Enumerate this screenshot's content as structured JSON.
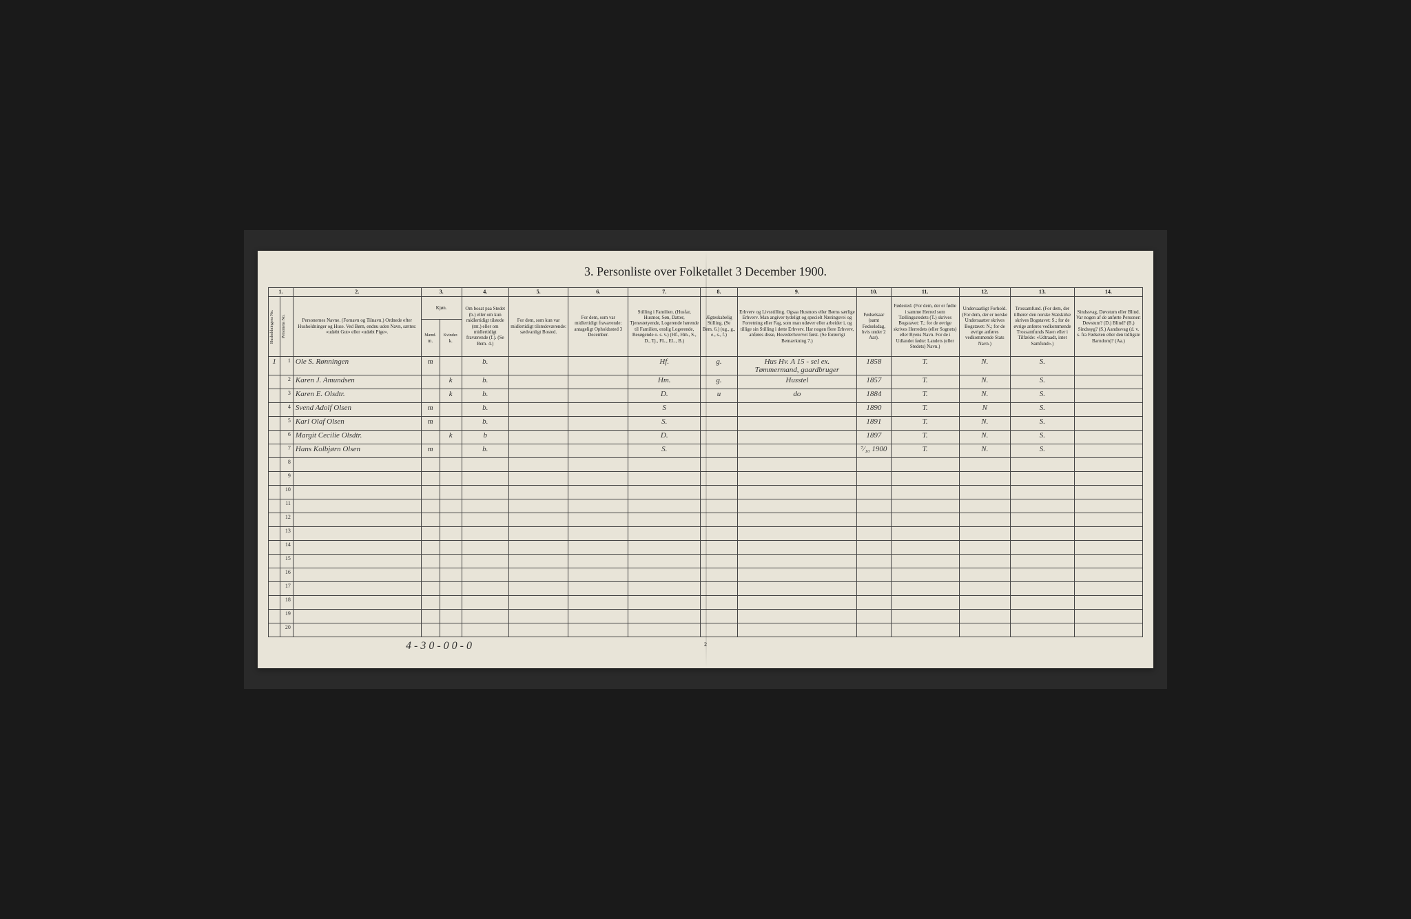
{
  "title": "3. Personliste over Folketallet 3 December 1900.",
  "col_numbers": [
    "1.",
    "2.",
    "3.",
    "4.",
    "5.",
    "6.",
    "7.",
    "8.",
    "9.",
    "10.",
    "11.",
    "12.",
    "13.",
    "14."
  ],
  "headers": {
    "c1a": "Husholdningens No.",
    "c1b": "Personens No.",
    "c2": "Personernes Navne.\n(Fornavn og Tilnavn.)\nOrdnede efter Husholdninger og Huse.\nVed Børn, endnu uden Navn, sættes: «udøbt Gut» eller «udøbt Pige».",
    "c3": "Kjøn.",
    "c3a": "Mænd.",
    "c3b": "Kvinder.",
    "c4": "Om bosat paa Stedet (b.) eller om kun midlertidigt tilstede (mt.) eller om midlertidigt fraværende (f.). (Se Bem. 4.)",
    "c5": "For dem, som kun var midlertidigt tilstedeværende:\nsædvanligt Bosted.",
    "c6": "For dem, som var midlertidigt fraværende:\nantageligt Opholdssted 3 December.",
    "c7": "Stilling i Familien.\n(Husfar, Husmor, Søn, Datter, Tjenestetyende, Logerende hørende til Familien, enslig Logerende, Besøgende o. s. v.)\n(Hf., Hm., S., D., Tj., FL., EL., B.)",
    "c8": "Ægteskabelig Stilling.\n(Se Bem. 6.)\n(ug., g., e., s., f.)",
    "c9": "Erhverv og Livsstilling.\nOgsaa Husmors eller Børns særlige Erhverv. Man angiver tydeligt og specielt Næringsvei og Forretning eller Fag, som man udøver eller arbeider i, og tillige sin Stilling i dette Erhverv. Har nogen flere Erhverv, anføres disse, Hovederhvervet først.\n(Se forøvrigt Bemærkning 7.)",
    "c10": "Fødselsaar\n(samt Fødselsdag, hvis under 2 Aar).",
    "c11": "Fødested.\n(For dem, der er fødte i samme Herred som Tællingsstedets (T.) skrives Bogstavet: T.; for de øvrige skrives Herredets (eller Sognets) eller Byens Navn. For de i Udlandet fødte: Landets (eller Stedets) Navn.)",
    "c12": "Undersaatligt Forhold.\n(For dem, der er norske Undersaatter skrives Bogstavet: N.; for de øvrige anføres vedkommende Stats Navn.)",
    "c13": "Trossamfund.\n(For dem, der tilhører den norske Statskirke skrives Bogstavet: S.; for de øvrige anføres vedkommende Trossamfunds Navn eller i Tilfælde: «Udtraadt, intet Samfund».)",
    "c14": "Sindssvag, Døvstum eller Blind.\nVar nogen af de anførte Personer:\nDøvstum? (D.)\nBlind? (B.)\nSindssyg? (S.)\nAandssvag (d. v. s. fra Fødselen eller den tidligste Barndom)? (Aa.)"
  },
  "rows": [
    {
      "hh": "1",
      "n": "1",
      "name": "Ole S. Rønningen",
      "m": "m",
      "k": "",
      "b": "b.",
      "c5": "",
      "c6": "",
      "c7": "Hf.",
      "c8": "g.",
      "c9": "Hus Hv. A 15 - sel ex.\nTømmermand, gaardbruger",
      "c10": "1858",
      "c11": "T.",
      "c12": "N.",
      "c13": "S.",
      "c14": ""
    },
    {
      "hh": "",
      "n": "2",
      "name": "Karen J. Amundsen",
      "m": "",
      "k": "k",
      "b": "b.",
      "c5": "",
      "c6": "",
      "c7": "Hm.",
      "c8": "g.",
      "c9": "Husstel",
      "c10": "1857",
      "c11": "T.",
      "c12": "N.",
      "c13": "S.",
      "c14": ""
    },
    {
      "hh": "",
      "n": "3",
      "name": "Karen E. Olsdtr.",
      "m": "",
      "k": "k",
      "b": "b.",
      "c5": "",
      "c6": "",
      "c7": "D.",
      "c8": "u",
      "c9": "do",
      "c10": "1884",
      "c11": "T.",
      "c12": "N.",
      "c13": "S.",
      "c14": ""
    },
    {
      "hh": "",
      "n": "4",
      "name": "Svend Adolf Olsen",
      "m": "m",
      "k": "",
      "b": "b.",
      "c5": "",
      "c6": "",
      "c7": "S",
      "c8": "",
      "c9": "",
      "c10": "1890",
      "c11": "T.",
      "c12": "N",
      "c13": "S.",
      "c14": ""
    },
    {
      "hh": "",
      "n": "5",
      "name": "Karl Olaf Olsen",
      "m": "m",
      "k": "",
      "b": "b.",
      "c5": "",
      "c6": "",
      "c7": "S.",
      "c8": "",
      "c9": "",
      "c10": "1891",
      "c11": "T.",
      "c12": "N.",
      "c13": "S.",
      "c14": ""
    },
    {
      "hh": "",
      "n": "6",
      "name": "Margit Cecilie Olsdtr.",
      "m": "",
      "k": "k",
      "b": "b",
      "c5": "",
      "c6": "",
      "c7": "D.",
      "c8": "",
      "c9": "",
      "c10": "1897",
      "c11": "T.",
      "c12": "N.",
      "c13": "S.",
      "c14": ""
    },
    {
      "hh": "",
      "n": "7",
      "name": "Hans Kolbjørn Olsen",
      "m": "m",
      "k": "",
      "b": "b.",
      "c5": "",
      "c6": "",
      "c7": "S.",
      "c8": "",
      "c9": "",
      "c10": "⁷⁄₁₀ 1900",
      "c11": "T.",
      "c12": "N.",
      "c13": "S.",
      "c14": ""
    }
  ],
  "empty_rows": 13,
  "footer": "4 - 3  0 - 0  0 - 0",
  "page_number": "2",
  "colors": {
    "paper": "#e8e4d8",
    "ink": "#222",
    "handwriting": "#333",
    "border": "#444",
    "background": "#1a1a1a"
  }
}
